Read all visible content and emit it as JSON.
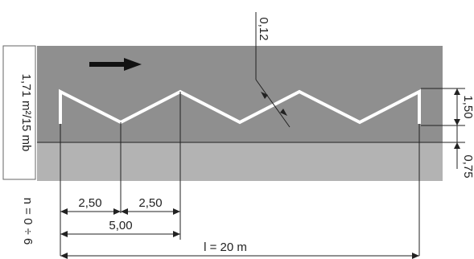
{
  "diagram": {
    "dimensions": {
      "thickness": "0,12",
      "height_upper": "1,50",
      "height_lower": "0,75",
      "half_segment_a": "2,50",
      "half_segment_b": "2,50",
      "segment": "5,00",
      "length": "l = 20 m"
    },
    "side_labels": {
      "weight": "1,71 m²/15 mb",
      "count": "n = 0 ÷ 6"
    },
    "colors": {
      "road_upper": "#8f8f8f",
      "road_lower": "#b3b3b3",
      "marking": "#ffffff",
      "lines": "#222222"
    }
  }
}
